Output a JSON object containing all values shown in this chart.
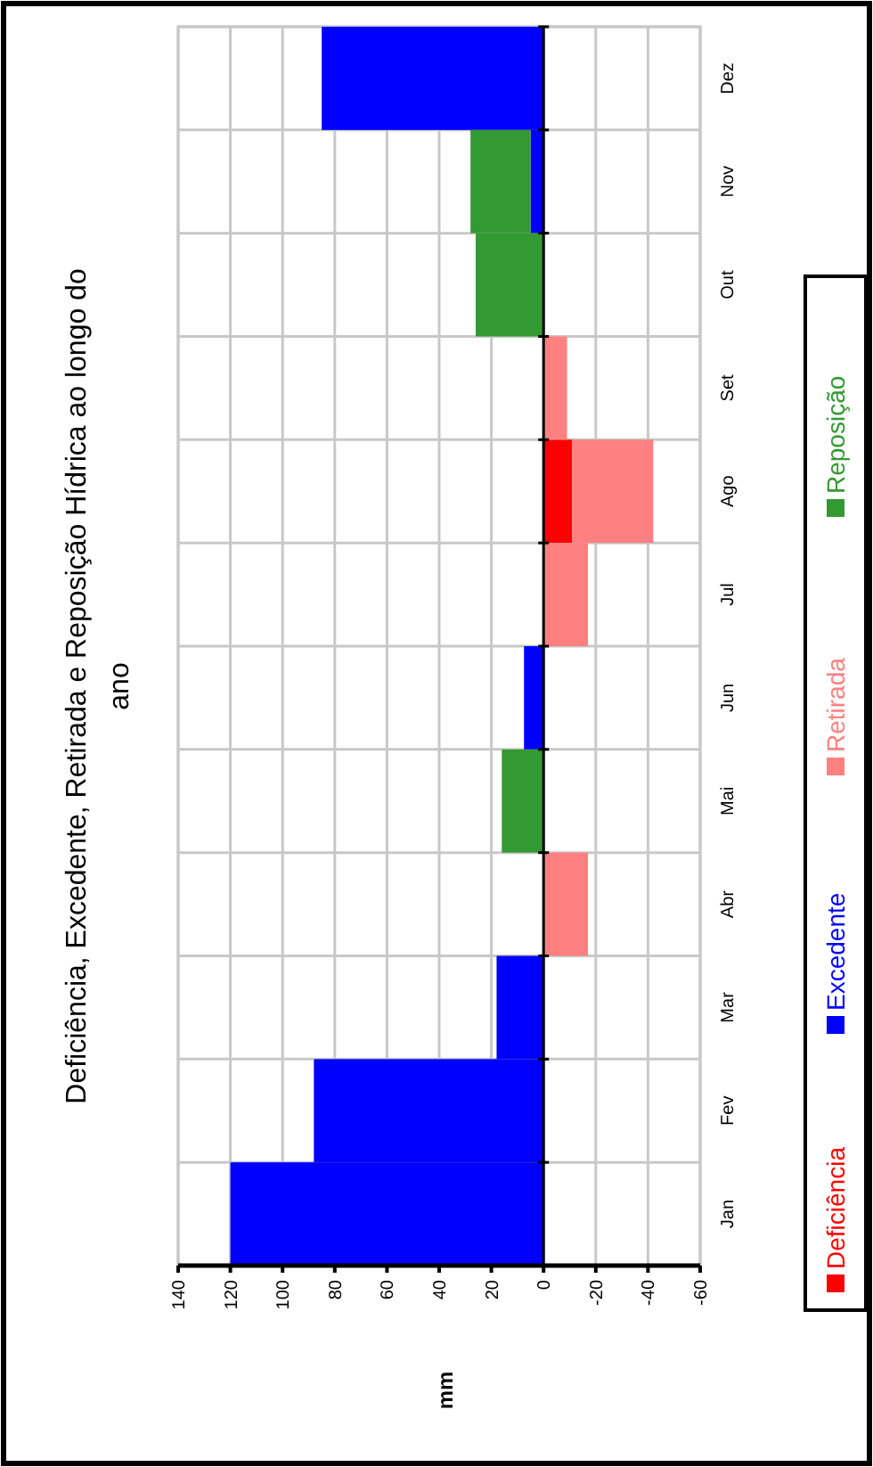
{
  "chart_data": {
    "type": "bar",
    "orientation": "horizontal",
    "title": "Deficiência, Excedente, Retirada e Reposição Hídrica ao longo do ano",
    "ylabel": "mm",
    "categories": [
      "Dez",
      "Nov",
      "Out",
      "Set",
      "Ago",
      "Jul",
      "Jun",
      "Mai",
      "Abr",
      "Mar",
      "Fev",
      "Jan"
    ],
    "stacked": true,
    "series": [
      {
        "name": "Deficiência",
        "color": "#ff0000",
        "values": [
          null,
          null,
          null,
          null,
          -11,
          null,
          null,
          null,
          null,
          null,
          null,
          null
        ]
      },
      {
        "name": "Excedente",
        "color": "#0000ff",
        "values": [
          85,
          5,
          null,
          null,
          null,
          null,
          7.5,
          null,
          null,
          18,
          88,
          120
        ]
      },
      {
        "name": "Retirada",
        "color": "#ff8080",
        "values": [
          null,
          null,
          null,
          -9,
          -31,
          -17,
          null,
          null,
          -17,
          null,
          null,
          null
        ]
      },
      {
        "name": "Reposição",
        "color": "#339933",
        "values": [
          null,
          23,
          26,
          null,
          null,
          null,
          null,
          16,
          null,
          null,
          null,
          null
        ]
      }
    ],
    "xlim": [
      140,
      -60
    ],
    "xticks": [
      140,
      120,
      100,
      80,
      60,
      40,
      20,
      0,
      -20,
      -40,
      -60
    ],
    "grid": true,
    "legend": "right"
  }
}
